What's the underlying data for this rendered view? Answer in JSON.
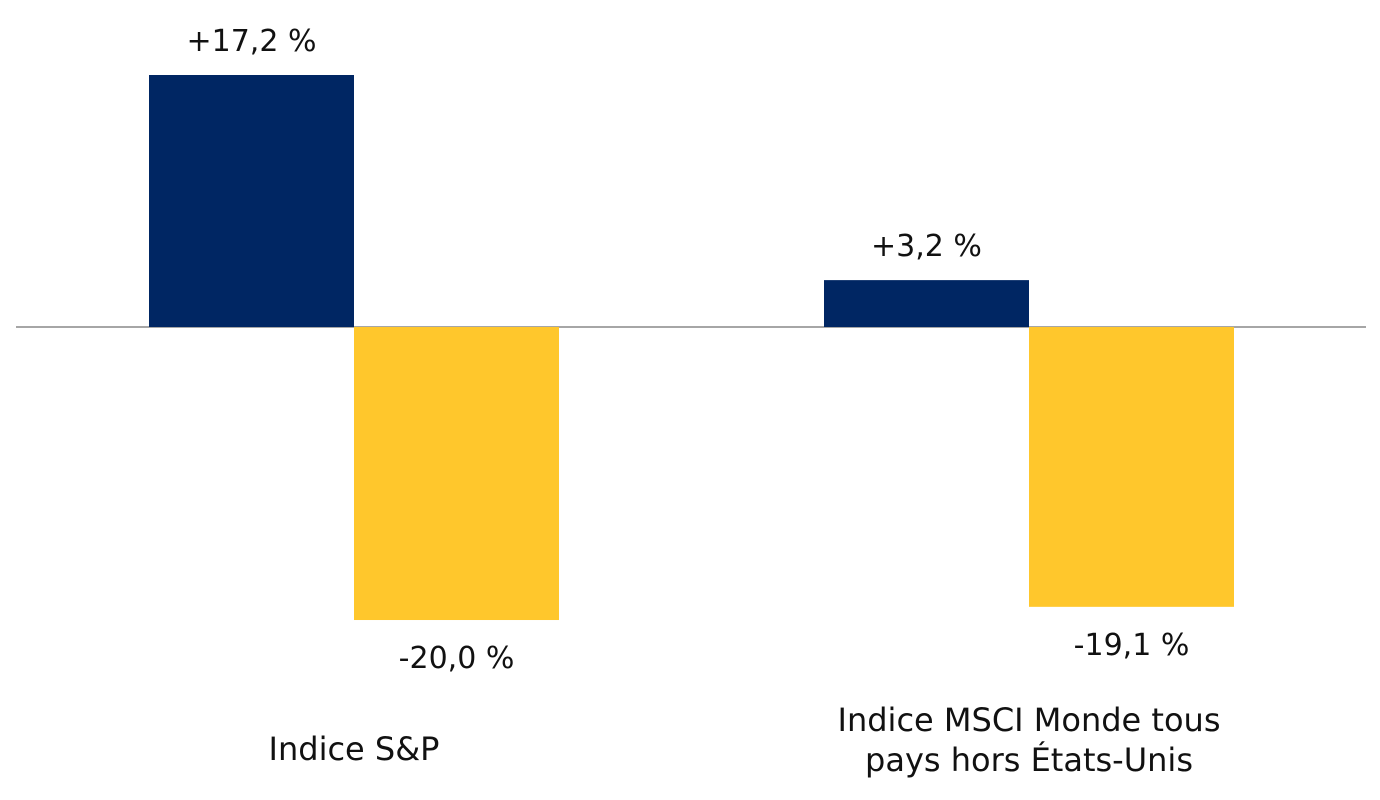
{
  "chart_data": {
    "type": "bar",
    "categories": [
      [
        "Indice S&P"
      ],
      [
        "Indice MSCI Monde tous",
        "pays hors États-Unis"
      ]
    ],
    "series": [
      {
        "values": [
          17.2,
          3.2
        ],
        "labels": [
          "+17,2 %",
          "+3,2 %"
        ],
        "color": "#002663"
      },
      {
        "values": [
          -20.0,
          -19.1
        ],
        "labels": [
          "-20,0 %",
          "-19,1 %"
        ],
        "color": "#FFC72C"
      }
    ],
    "ylim": [
      -20.0,
      17.2
    ],
    "grid": false,
    "legend": "none",
    "zero_line_color": "#A6A6A6"
  }
}
